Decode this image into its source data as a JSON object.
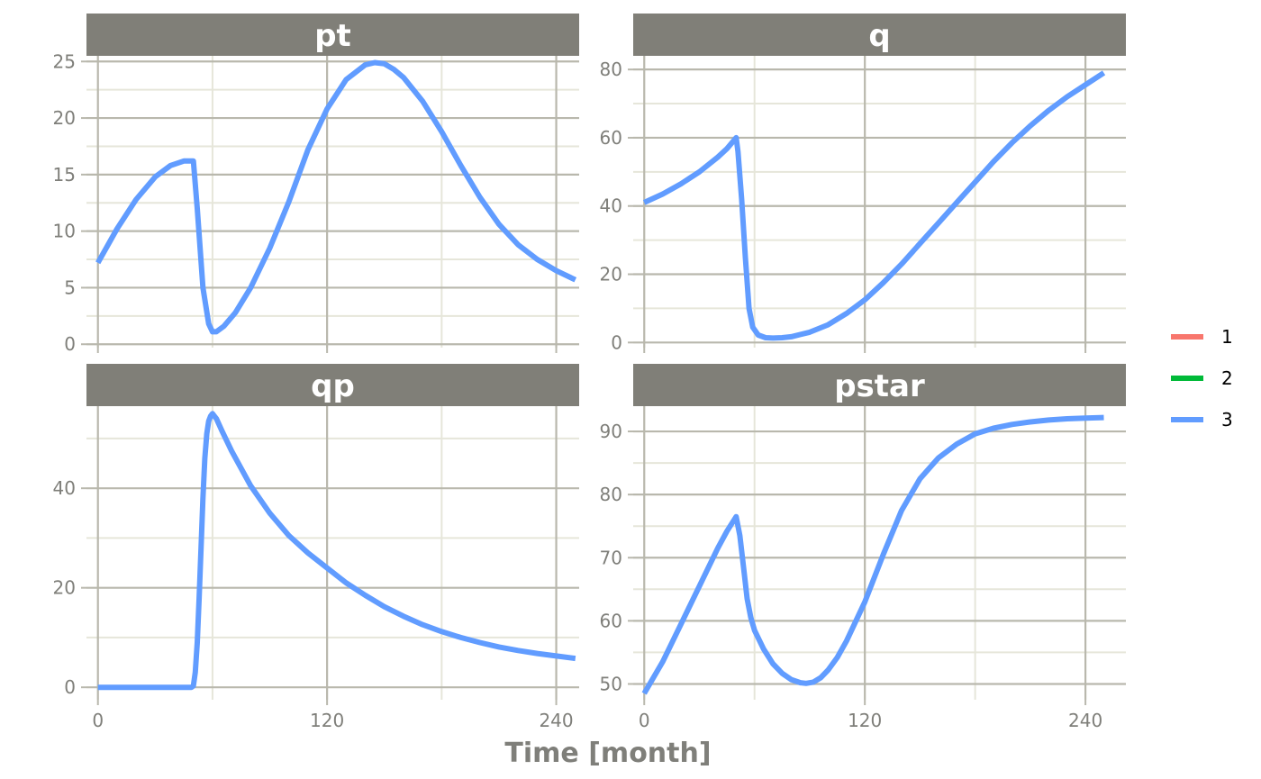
{
  "chart_data": {
    "type": "line",
    "xlabel": "Time [month]",
    "colors": {
      "strip_background": "#807f78",
      "strip_text": "#ffffff",
      "grid_major": "#b9b8ad",
      "grid_minor": "#e6e6da",
      "axis_text": "#7f7f7a"
    },
    "legend": {
      "position": "right",
      "entries": [
        {
          "label": "1",
          "color": "#f8766d"
        },
        {
          "label": "2",
          "color": "#00ba38"
        },
        {
          "label": "3",
          "color": "#619cff"
        }
      ]
    },
    "panels": [
      {
        "title": "pt",
        "xlim": [
          -6,
          252
        ],
        "ylim": [
          -0.3,
          25.5
        ],
        "xticks": [
          {
            "value": 0,
            "label": "0"
          },
          {
            "value": 120,
            "label": "120"
          },
          {
            "value": 240,
            "label": "240"
          }
        ],
        "xticks_minor": [
          60,
          180
        ],
        "yticks": [
          {
            "value": 0,
            "label": "0"
          },
          {
            "value": 5,
            "label": "5"
          },
          {
            "value": 10,
            "label": "10"
          },
          {
            "value": 15,
            "label": "15"
          },
          {
            "value": 20,
            "label": "20"
          },
          {
            "value": 25,
            "label": "25"
          }
        ],
        "yticks_minor": [
          2.5,
          7.5,
          12.5,
          17.5,
          22.5
        ],
        "show_xlabels": false,
        "series": [
          {
            "series": "3",
            "x": [
              0,
              10,
              20,
              30,
              38,
              45,
              50,
              52,
              55,
              58,
              60,
              62,
              66,
              72,
              80,
              90,
              100,
              110,
              120,
              130,
              140,
              145,
              150,
              155,
              160,
              170,
              180,
              190,
              200,
              210,
              220,
              230,
              240,
              250
            ],
            "y": [
              7.2,
              10.2,
              12.8,
              14.8,
              15.8,
              16.2,
              16.2,
              12.0,
              5.0,
              1.8,
              1.1,
              1.1,
              1.6,
              2.8,
              5.0,
              8.5,
              12.6,
              17.2,
              20.8,
              23.4,
              24.7,
              24.9,
              24.8,
              24.3,
              23.6,
              21.5,
              18.8,
              15.8,
              13.0,
              10.6,
              8.8,
              7.5,
              6.5,
              5.7
            ]
          }
        ]
      },
      {
        "title": "q",
        "xlim": [
          -6,
          262
        ],
        "ylim": [
          -1.5,
          84
        ],
        "xticks": [
          {
            "value": 0,
            "label": "0"
          },
          {
            "value": 120,
            "label": "120"
          },
          {
            "value": 240,
            "label": "240"
          }
        ],
        "xticks_minor": [
          60,
          180
        ],
        "yticks": [
          {
            "value": 0,
            "label": "0"
          },
          {
            "value": 20,
            "label": "20"
          },
          {
            "value": 40,
            "label": "40"
          },
          {
            "value": 60,
            "label": "60"
          },
          {
            "value": 80,
            "label": "80"
          }
        ],
        "yticks_minor": [
          10,
          30,
          50,
          70
        ],
        "show_xlabels": false,
        "series": [
          {
            "series": "3",
            "x": [
              0,
              10,
              20,
              30,
              40,
              45,
              50,
              51,
              53,
              55,
              57,
              59,
              62,
              66,
              70,
              75,
              80,
              90,
              100,
              110,
              120,
              130,
              140,
              150,
              160,
              170,
              180,
              190,
              200,
              210,
              220,
              230,
              240,
              250
            ],
            "y": [
              41,
              43.5,
              46.5,
              50,
              54.3,
              56.8,
              60,
              56,
              42,
              25,
              10,
              4.5,
              2.2,
              1.4,
              1.3,
              1.4,
              1.7,
              3.0,
              5.2,
              8.5,
              12.5,
              17.5,
              23,
              29,
              35,
              41,
              47,
              53,
              58.5,
              63.5,
              68,
              72,
              75.5,
              79
            ]
          }
        ]
      },
      {
        "title": "qp",
        "xlim": [
          -6,
          252
        ],
        "ylim": [
          -2.5,
          56.5
        ],
        "xticks": [
          {
            "value": 0,
            "label": "0"
          },
          {
            "value": 120,
            "label": "120"
          },
          {
            "value": 240,
            "label": "240"
          }
        ],
        "xticks_minor": [
          60,
          180
        ],
        "yticks": [
          {
            "value": 0,
            "label": "0"
          },
          {
            "value": 20,
            "label": "20"
          },
          {
            "value": 40,
            "label": "40"
          }
        ],
        "yticks_minor": [
          10,
          30,
          50
        ],
        "show_xlabels": true,
        "series": [
          {
            "series": "3",
            "x": [
              0,
              10,
              20,
              30,
              40,
              49,
              50,
              51,
              52,
              53,
              54,
              55,
              56,
              57,
              58,
              59,
              60,
              62,
              65,
              70,
              80,
              90,
              100,
              110,
              120,
              130,
              140,
              150,
              160,
              170,
              180,
              190,
              200,
              210,
              220,
              230,
              240,
              250
            ],
            "y": [
              0,
              0,
              0,
              0,
              0,
              0,
              0.3,
              3,
              9,
              18,
              28,
              38,
              46,
              51,
              53.5,
              54.5,
              55,
              54,
              51.5,
              47.5,
              40.5,
              35,
              30.5,
              27,
              24,
              21,
              18.5,
              16.2,
              14.3,
              12.6,
              11.2,
              10.0,
              9.0,
              8.1,
              7.4,
              6.8,
              6.3,
              5.8
            ]
          }
        ]
      },
      {
        "title": "pstar",
        "xlim": [
          -6,
          262
        ],
        "ylim": [
          47.5,
          94
        ],
        "xticks": [
          {
            "value": 0,
            "label": "0"
          },
          {
            "value": 120,
            "label": "120"
          },
          {
            "value": 240,
            "label": "240"
          }
        ],
        "xticks_minor": [
          60,
          180
        ],
        "yticks": [
          {
            "value": 50,
            "label": "50"
          },
          {
            "value": 60,
            "label": "60"
          },
          {
            "value": 70,
            "label": "70"
          },
          {
            "value": 80,
            "label": "80"
          },
          {
            "value": 90,
            "label": "90"
          }
        ],
        "yticks_minor": [
          55,
          65,
          75,
          85
        ],
        "show_xlabels": true,
        "series": [
          {
            "series": "3",
            "x": [
              0,
              10,
              20,
              30,
              40,
              45,
              50,
              52,
              54,
              56,
              58,
              60,
              65,
              70,
              75,
              80,
              85,
              88,
              92,
              96,
              100,
              105,
              110,
              120,
              130,
              140,
              150,
              160,
              170,
              180,
              190,
              200,
              210,
              220,
              230,
              240,
              250
            ],
            "y": [
              48.5,
              53.5,
              59.5,
              65.5,
              71.5,
              74.2,
              76.5,
              73.5,
              68.5,
              63.5,
              60.5,
              58.5,
              55.5,
              53.2,
              51.7,
              50.7,
              50.2,
              50.1,
              50.3,
              51.0,
              52.2,
              54.2,
              56.8,
              63,
              70.5,
              77.5,
              82.5,
              85.8,
              88,
              89.6,
              90.5,
              91.1,
              91.5,
              91.8,
              92,
              92.1,
              92.2
            ]
          }
        ]
      }
    ]
  }
}
